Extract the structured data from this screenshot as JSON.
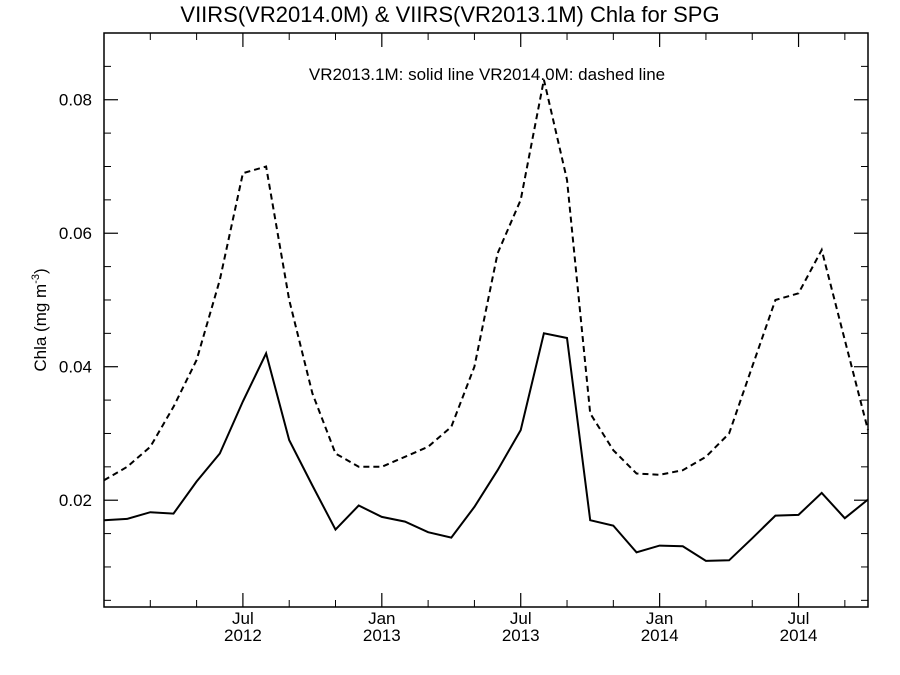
{
  "chart_data": {
    "type": "line",
    "title": "VIIRS(VR2014.0M) & VIIRS(VR2013.1M)  Chla for SPG",
    "annotation": "VR2013.1M: solid line   VR2014.0M: dashed line",
    "ylabel": "Chla (mg m",
    "ylabel_sup": "-3",
    "ylabel_close": ")",
    "xlabel": "",
    "ylim": [
      0.004,
      0.09
    ],
    "xlim": [
      "2012-01",
      "2014-10"
    ],
    "grid": false,
    "x_ticks": [
      {
        "x": "2012-07",
        "month": "Jul",
        "year": "2012"
      },
      {
        "x": "2013-01",
        "month": "Jan",
        "year": "2013"
      },
      {
        "x": "2013-07",
        "month": "Jul",
        "year": "2013"
      },
      {
        "x": "2014-01",
        "month": "Jan",
        "year": "2014"
      },
      {
        "x": "2014-07",
        "month": "Jul",
        "year": "2014"
      }
    ],
    "y_ticks": [
      "0.02",
      "0.04",
      "0.06",
      "0.08"
    ],
    "x": [
      "2012-01",
      "2012-02",
      "2012-03",
      "2012-04",
      "2012-05",
      "2012-06",
      "2012-07",
      "2012-08",
      "2012-09",
      "2012-10",
      "2012-11",
      "2012-12",
      "2013-01",
      "2013-02",
      "2013-03",
      "2013-04",
      "2013-05",
      "2013-06",
      "2013-07",
      "2013-08",
      "2013-09",
      "2013-10",
      "2013-11",
      "2013-12",
      "2014-01",
      "2014-02",
      "2014-03",
      "2014-04",
      "2014-05",
      "2014-06",
      "2014-07",
      "2014-08",
      "2014-09",
      "2014-10"
    ],
    "series": [
      {
        "line_style": "solid",
        "values": [
          0.017,
          0.0172,
          0.0182,
          0.018,
          0.0228,
          0.027,
          0.0348,
          0.042,
          0.029,
          0.0222,
          0.0156,
          0.0192,
          0.0175,
          0.0168,
          0.0152,
          0.0144,
          0.019,
          0.0245,
          0.0305,
          0.045,
          0.0443,
          0.017,
          0.0162,
          0.0122,
          0.0132,
          0.0131,
          0.0109,
          0.011,
          0.0143,
          0.0177,
          0.0178,
          0.0211,
          0.0173,
          0.0201
        ]
      },
      {
        "line_style": "dashed",
        "values": [
          0.023,
          0.025,
          0.028,
          0.034,
          0.041,
          0.053,
          0.069,
          0.07,
          0.05,
          0.036,
          0.027,
          0.025,
          0.025,
          0.0265,
          0.028,
          0.031,
          0.04,
          0.057,
          0.065,
          0.083,
          0.068,
          0.033,
          0.0275,
          0.024,
          0.0238,
          0.0245,
          0.0265,
          0.03,
          0.04,
          0.05,
          0.051,
          0.0575,
          0.044,
          0.0305
        ]
      }
    ]
  }
}
